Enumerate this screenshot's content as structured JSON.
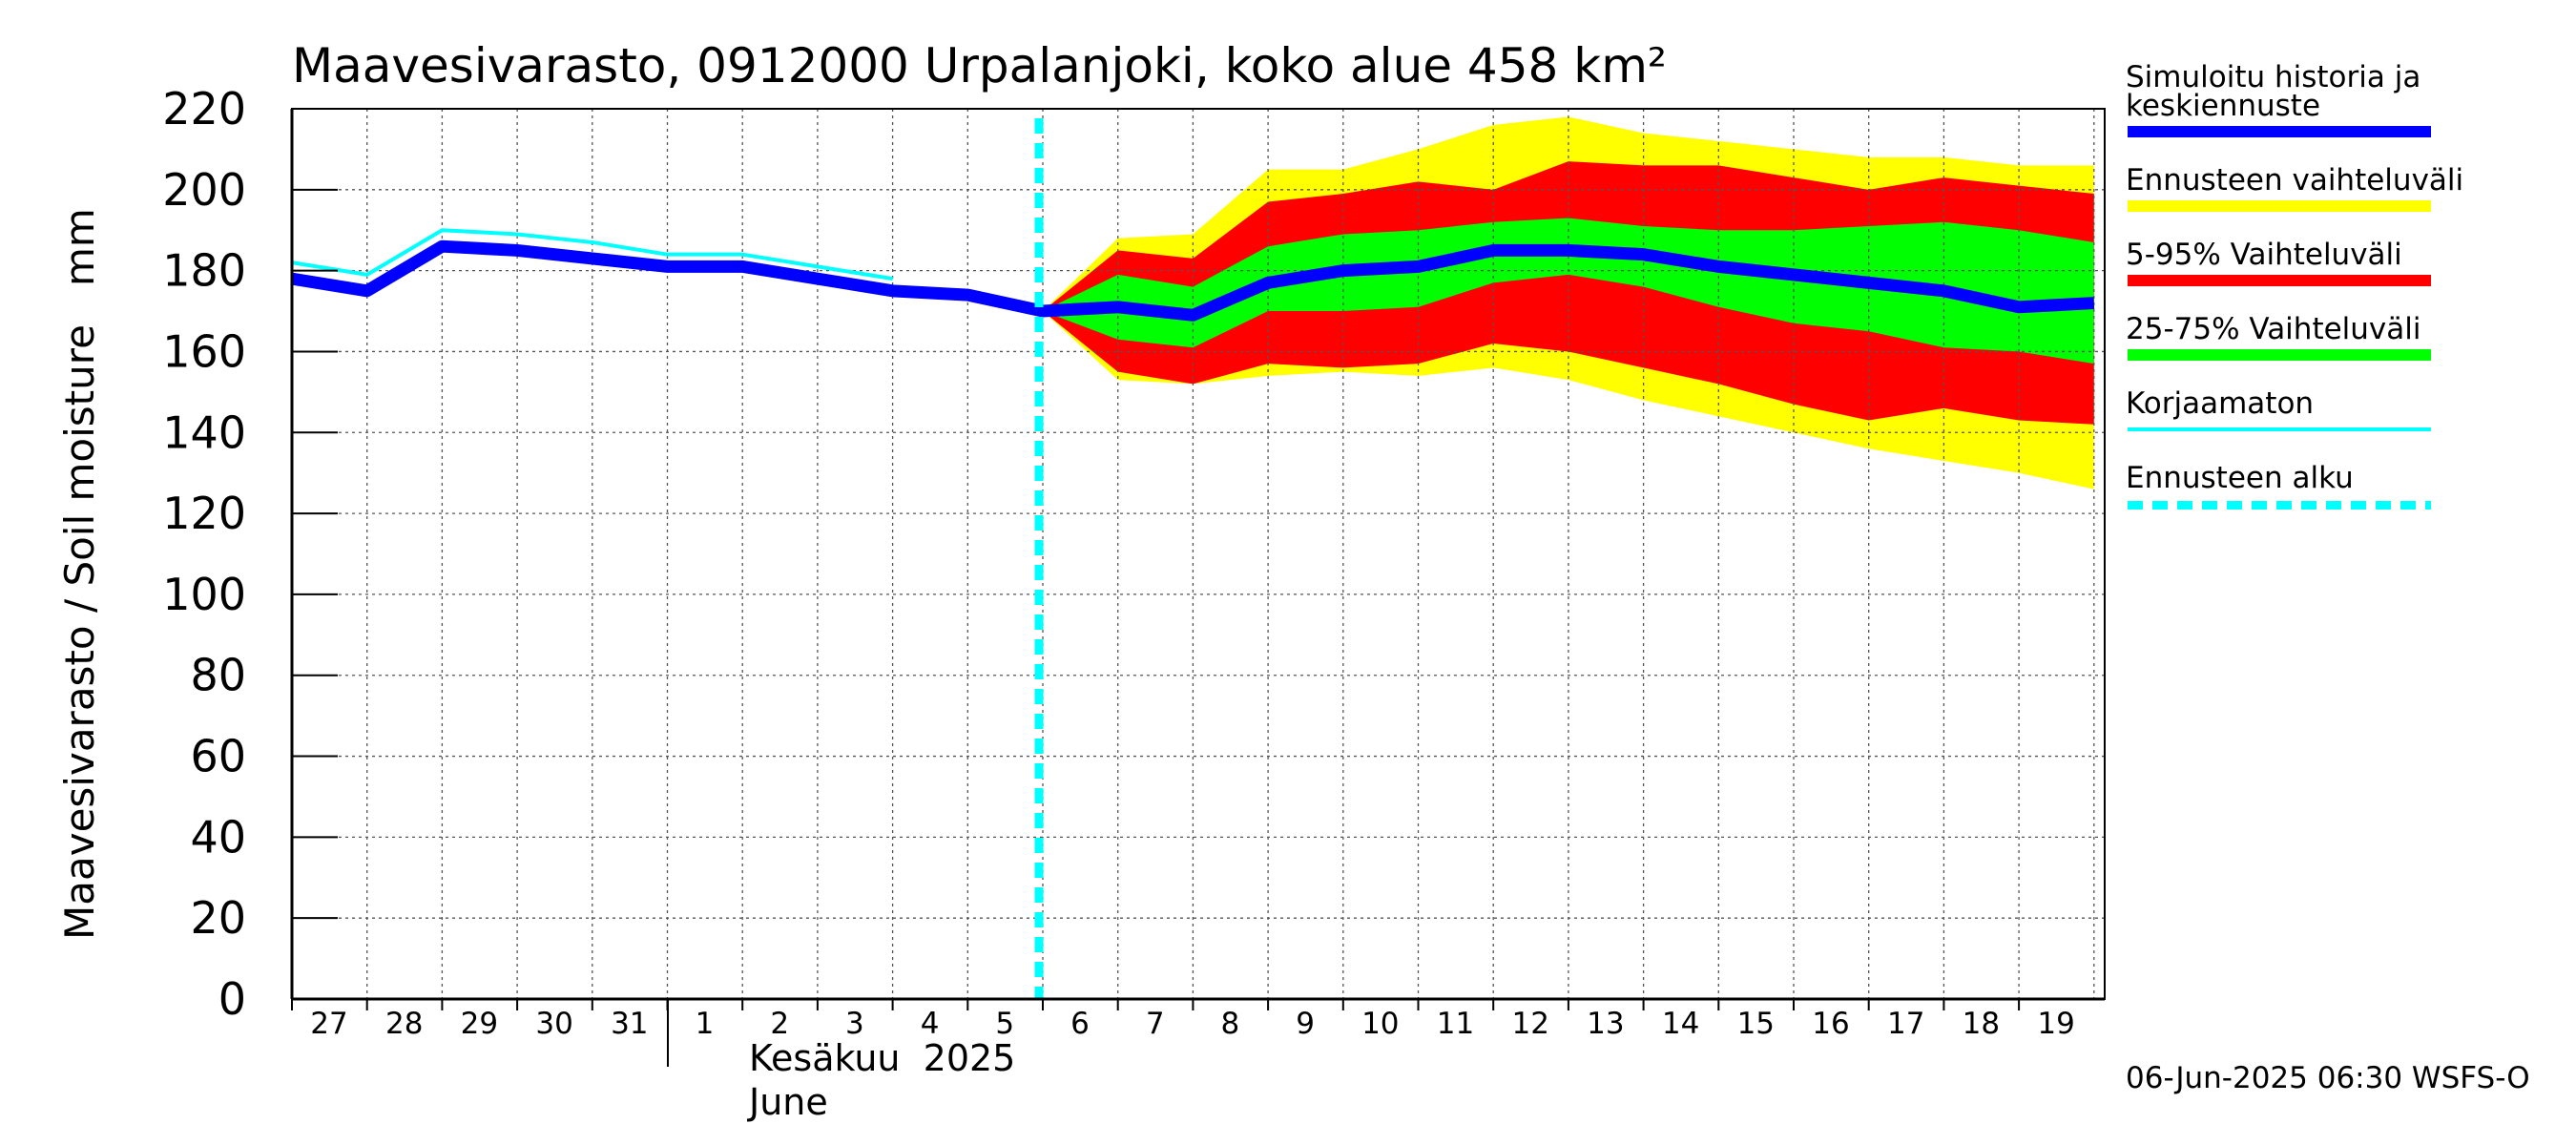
{
  "chart_data": {
    "type": "area",
    "title": "Maavesivarasto, 0912000 Urpalanjoki, koko alue 458 km²",
    "ylabel": "Maavesivarasto / Soil moisture   mm",
    "xlabel_month": "Kesäkuu  2025",
    "xlabel_month_en": "June",
    "ylim": [
      0,
      220
    ],
    "yticks": [
      "0",
      "20",
      "40",
      "60",
      "80",
      "100",
      "120",
      "140",
      "160",
      "180",
      "200",
      "220"
    ],
    "xticks": [
      "27",
      "28",
      "29",
      "30",
      "31",
      "1",
      "2",
      "3",
      "4",
      "5",
      "6",
      "7",
      "8",
      "9",
      "10",
      "11",
      "12",
      "13",
      "14",
      "15",
      "16",
      "17",
      "18",
      "19"
    ],
    "grid": true,
    "forecast_start_index": 10,
    "series": [
      {
        "name": "Korjaamaton",
        "color": "#00ffff",
        "x": [
          0,
          1,
          2,
          3,
          4,
          5,
          6,
          7,
          8
        ],
        "values": [
          182,
          179,
          190,
          189,
          187,
          184,
          184,
          181,
          178
        ]
      },
      {
        "name": "Simuloitu historia ja keskiennuste",
        "color": "#0000ff",
        "x": [
          0,
          1,
          2,
          3,
          4,
          5,
          6,
          7,
          8,
          9,
          10,
          11,
          12,
          13,
          14,
          15,
          16,
          17,
          18,
          19,
          20,
          21,
          22,
          23,
          24
        ],
        "values": [
          178,
          175,
          186,
          185,
          183,
          181,
          181,
          178,
          175,
          174,
          170,
          171,
          169,
          177,
          180,
          181,
          185,
          185,
          184,
          181,
          179,
          177,
          175,
          171,
          172
        ]
      }
    ],
    "bands": [
      {
        "name": "Ennusteen vaihteluväli",
        "color": "#ffff00",
        "x": [
          10,
          11,
          12,
          13,
          14,
          15,
          16,
          17,
          18,
          19,
          20,
          21,
          22,
          23,
          24
        ],
        "upper": [
          170,
          188,
          189,
          205,
          205,
          210,
          216,
          218,
          214,
          212,
          210,
          208,
          208,
          206,
          206
        ],
        "lower": [
          170,
          153,
          152,
          154,
          155,
          154,
          156,
          153,
          148,
          144,
          140,
          136,
          133,
          130,
          126
        ]
      },
      {
        "name": "5-95% Vaihteluväli",
        "color": "#ff0000",
        "x": [
          10,
          11,
          12,
          13,
          14,
          15,
          16,
          17,
          18,
          19,
          20,
          21,
          22,
          23,
          24
        ],
        "upper": [
          170,
          185,
          183,
          197,
          199,
          202,
          200,
          207,
          206,
          206,
          203,
          200,
          203,
          201,
          199
        ],
        "lower": [
          170,
          155,
          152,
          157,
          156,
          157,
          162,
          160,
          156,
          152,
          147,
          143,
          146,
          143,
          142
        ]
      },
      {
        "name": "25-75% Vaihteluväli",
        "color": "#00ff00",
        "x": [
          10,
          11,
          12,
          13,
          14,
          15,
          16,
          17,
          18,
          19,
          20,
          21,
          22,
          23,
          24
        ],
        "upper": [
          170,
          179,
          176,
          186,
          189,
          190,
          192,
          193,
          191,
          190,
          190,
          191,
          192,
          190,
          187
        ],
        "lower": [
          170,
          163,
          161,
          170,
          170,
          171,
          177,
          179,
          176,
          171,
          167,
          165,
          161,
          160,
          157
        ]
      }
    ]
  },
  "legend": {
    "items": [
      {
        "label": "Simuloitu historia ja\nkeskiennuste",
        "color": "#0000ff",
        "style": "solid-thick"
      },
      {
        "label": "Ennusteen vaihteluväli",
        "color": "#ffff00",
        "style": "solid-thick"
      },
      {
        "label": "5-95% Vaihteluväli",
        "color": "#ff0000",
        "style": "solid-thick"
      },
      {
        "label": "25-75% Vaihteluväli",
        "color": "#00ff00",
        "style": "solid-thick"
      },
      {
        "label": "Korjaamaton",
        "color": "#00ffff",
        "style": "solid-thin"
      },
      {
        "label": "Ennusteen alku",
        "color": "#00ffff",
        "style": "dashed"
      }
    ]
  },
  "footer": "06-Jun-2025 06:30 WSFS-O"
}
